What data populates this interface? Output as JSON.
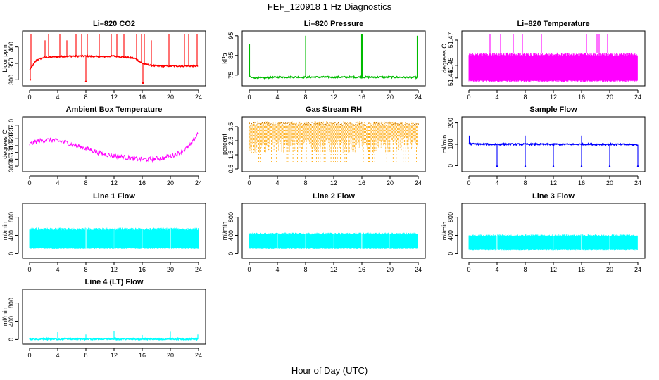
{
  "figure": {
    "title": "FEF_120918  1 Hz Diagnostics",
    "xlabel": "Hour of Day (UTC)"
  },
  "chart_data": [
    {
      "type": "line",
      "title": "Li–820 CO2",
      "ylabel": "Licor ppm",
      "color": "#ff0000",
      "xlim": [
        0,
        24
      ],
      "ylim": [
        290,
        440
      ],
      "xticks": [
        "0",
        "4",
        "8",
        "12",
        "16",
        "20",
        "24"
      ],
      "yticks": [
        "300",
        "350",
        "400"
      ],
      "x": [
        0,
        1,
        2,
        4,
        6,
        8,
        10,
        12,
        14,
        15,
        16,
        17,
        18,
        20,
        22,
        24
      ],
      "y": [
        330,
        360,
        368,
        370,
        372,
        372,
        370,
        372,
        368,
        365,
        350,
        345,
        342,
        342,
        342,
        342
      ],
      "spikes": {
        "x": [
          0.2,
          2.2,
          2.7,
          4.3,
          5.3,
          6.6,
          7.4,
          8.2,
          9.9,
          11.6,
          12.4,
          13.4,
          15.2,
          15.9,
          16.3,
          17.3,
          19.8,
          22.0,
          22.6,
          23.8
        ],
        "y": [
          440,
          420,
          440,
          440,
          420,
          440,
          440,
          440,
          440,
          440,
          440,
          440,
          440,
          440,
          440,
          420,
          440,
          440,
          440,
          440
        ]
      },
      "dips": {
        "x": [
          0.1,
          8.0,
          16.1
        ],
        "y": [
          300,
          295,
          290
        ]
      }
    },
    {
      "type": "line",
      "title": "Li–820 Pressure",
      "ylabel": "kPa",
      "color": "#00bb00",
      "xlim": [
        0,
        24
      ],
      "ylim": [
        71,
        96
      ],
      "xticks": [
        "0",
        "4",
        "8",
        "12",
        "16",
        "20",
        "24"
      ],
      "yticks": [
        "75",
        "85",
        "95"
      ],
      "x": [
        0,
        0.3,
        2,
        4,
        8,
        12,
        16,
        20,
        23.7,
        24
      ],
      "y": [
        74.5,
        73.8,
        73.6,
        74,
        74,
        74,
        74,
        74,
        73.8,
        74
      ],
      "spikes": {
        "x": [
          0.05,
          8.0,
          15.95,
          16.05,
          23.85
        ],
        "y": [
          91,
          95,
          96,
          96,
          95
        ]
      }
    },
    {
      "type": "area",
      "title": "Li–820 Temperature",
      "ylabel": "degrees C",
      "color": "#ff00ff",
      "xlim": [
        0,
        24
      ],
      "ylim": [
        51.436,
        51.475
      ],
      "xticks": [
        "0",
        "4",
        "8",
        "12",
        "16",
        "20",
        "24"
      ],
      "yticks": [
        "51.44",
        "51.45",
        "51.47"
      ],
      "band": [
        51.437,
        51.46
      ],
      "spikes": {
        "x": [
          3.0,
          4.5,
          6.3,
          7.6,
          10.3,
          16.7,
          18.2,
          18.5,
          19.7
        ],
        "y": [
          51.475,
          51.475,
          51.475,
          51.475,
          51.475,
          51.475,
          51.475,
          51.475,
          51.475
        ]
      }
    },
    {
      "type": "line",
      "title": "Ambient Box Temperature",
      "ylabel": "degrees C",
      "color": "#ff00ff",
      "xlim": [
        0,
        24
      ],
      "ylim": [
        29.8,
        33.4
      ],
      "xticks": [
        "0",
        "4",
        "8",
        "12",
        "16",
        "20",
        "24"
      ],
      "yticks": [
        "30.0",
        "30.5",
        "31.0",
        "31.5",
        "32.0",
        "32.5",
        "33.0"
      ],
      "x": [
        0,
        1,
        2,
        3,
        4,
        5,
        6,
        7,
        8,
        9,
        10,
        11,
        12,
        13,
        14,
        15,
        16,
        17,
        18,
        19,
        20,
        21,
        22,
        23,
        24
      ],
      "y": [
        31.6,
        31.8,
        31.9,
        31.9,
        31.85,
        31.75,
        31.6,
        31.45,
        31.3,
        31.15,
        30.95,
        30.85,
        30.75,
        30.7,
        30.6,
        30.55,
        30.5,
        30.5,
        30.55,
        30.6,
        30.75,
        30.9,
        31.2,
        31.6,
        32.5
      ],
      "noise": 0.35
    },
    {
      "type": "scatter",
      "title": "Gas Stream RH",
      "ylabel": "percent",
      "color": "#ffa500",
      "xlim": [
        0,
        24
      ],
      "ylim": [
        0.5,
        4.0
      ],
      "xticks": [
        "0",
        "4",
        "8",
        "12",
        "16",
        "20",
        "24"
      ],
      "yticks": [
        "0.5",
        "1.5",
        "2.5",
        "3.5"
      ],
      "band": [
        1.0,
        3.9
      ]
    },
    {
      "type": "line",
      "title": "Sample Flow",
      "ylabel": "ml/min",
      "color": "#0000ff",
      "xlim": [
        0,
        24
      ],
      "ylim": [
        -15,
        215
      ],
      "xticks": [
        "0",
        "4",
        "8",
        "12",
        "16",
        "20",
        "24"
      ],
      "yticks": [
        "0",
        "100",
        "200"
      ],
      "x": [
        0,
        2,
        4,
        8,
        12,
        16,
        20,
        24
      ],
      "y": [
        102,
        100,
        100,
        100,
        100,
        100,
        100,
        98
      ],
      "spikes": {
        "x": [
          0.05,
          8.0,
          16.0
        ],
        "y": [
          140,
          140,
          140
        ]
      },
      "dips": {
        "x": [
          4.0,
          8.0,
          12.0,
          16.0,
          20.0,
          24.0
        ],
        "y": [
          -3,
          -3,
          -3,
          -3,
          -3,
          -3
        ]
      }
    },
    {
      "type": "area",
      "title": "Line 1 Flow",
      "ylabel": "ml/min",
      "color": "#00ffff",
      "xlim": [
        0,
        24
      ],
      "ylim": [
        -40,
        1040
      ],
      "xticks": [
        "0",
        "4",
        "8",
        "12",
        "16",
        "20",
        "24"
      ],
      "yticks": [
        "0",
        "400",
        "800"
      ],
      "band": [
        100,
        570
      ],
      "gaps": [
        4,
        8,
        12,
        16,
        20
      ]
    },
    {
      "type": "area",
      "title": "Line 2 Flow",
      "ylabel": "ml/min",
      "color": "#00ffff",
      "xlim": [
        0,
        24
      ],
      "ylim": [
        -40,
        1040
      ],
      "xticks": [
        "0",
        "4",
        "8",
        "12",
        "16",
        "20",
        "24"
      ],
      "yticks": [
        "0",
        "400",
        "800"
      ],
      "band": [
        100,
        460
      ],
      "gaps": [
        4,
        8,
        12,
        16,
        20
      ]
    },
    {
      "type": "area",
      "title": "Line 3 Flow",
      "ylabel": "ml/min",
      "color": "#00ffff",
      "xlim": [
        0,
        24
      ],
      "ylim": [
        -40,
        1040
      ],
      "xticks": [
        "0",
        "4",
        "8",
        "12",
        "16",
        "20",
        "24"
      ],
      "yticks": [
        "0",
        "400",
        "800"
      ],
      "band": [
        80,
        420
      ],
      "gaps": [
        4,
        8,
        12,
        16,
        20
      ]
    },
    {
      "type": "line",
      "title": "Line 4 (LT) Flow",
      "ylabel": "ml/min",
      "color": "#00ffff",
      "xlim": [
        0,
        24
      ],
      "ylim": [
        -40,
        1040
      ],
      "xticks": [
        "0",
        "4",
        "8",
        "12",
        "16",
        "20",
        "24"
      ],
      "yticks": [
        "0",
        "400",
        "800"
      ],
      "x": [
        0,
        24
      ],
      "y": [
        10,
        10
      ],
      "spikes": {
        "x": [
          4.0,
          8.0,
          12.0,
          16.0,
          20.0,
          23.9
        ],
        "y": [
          160,
          110,
          180,
          100,
          170,
          110
        ]
      }
    }
  ]
}
